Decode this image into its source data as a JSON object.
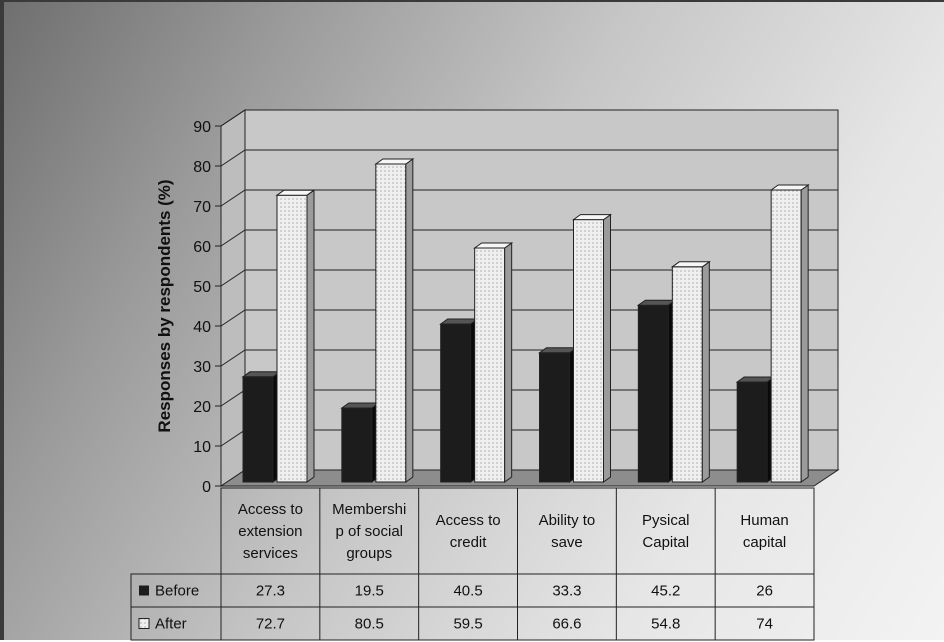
{
  "chart_data": {
    "type": "bar",
    "ylabel": "Responses by respondents (%)",
    "ylim": [
      0,
      90
    ],
    "yticks": [
      0,
      10,
      20,
      30,
      40,
      50,
      60,
      70,
      80,
      90
    ],
    "categories": [
      [
        "Access to",
        "extension",
        "services"
      ],
      [
        "Membershi",
        "p of social",
        "groups"
      ],
      [
        "Access to",
        "credit"
      ],
      [
        "Ability to",
        "save"
      ],
      [
        "Pysical",
        "Capital"
      ],
      [
        "Human",
        "capital"
      ]
    ],
    "series": [
      {
        "name": "Before",
        "values": [
          27.3,
          19.5,
          40.5,
          33.3,
          45.2,
          26
        ],
        "labels": [
          "27.3",
          "19.5",
          "40.5",
          "33.3",
          "45.2",
          "26"
        ]
      },
      {
        "name": "After",
        "values": [
          72.7,
          80.5,
          59.5,
          66.6,
          54.8,
          74
        ],
        "labels": [
          "72.7",
          "80.5",
          "59.5",
          "66.6",
          "54.8",
          "74"
        ]
      }
    ],
    "grid": true,
    "legend": "data-table"
  },
  "colors": {
    "before_bar": "#1c1c1c",
    "after_bar": "#eeeeee",
    "plot_bg": "#c8c8c8"
  }
}
